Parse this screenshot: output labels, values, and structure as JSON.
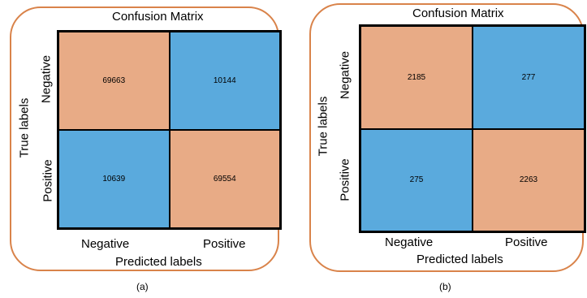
{
  "colors": {
    "high": "#e8ab86",
    "low": "#5aaadd",
    "frame": "#d9834a"
  },
  "panels": [
    {
      "title": "Confusion Matrix",
      "ylabel": "True labels",
      "xlabel": "Predicted labels",
      "row_labels": [
        "Negative",
        "Positive"
      ],
      "col_labels": [
        "Negative",
        "Positive"
      ],
      "cells": [
        [
          "69663",
          "10144"
        ],
        [
          "10639",
          "69554"
        ]
      ],
      "caption": "(a)"
    },
    {
      "title": "Confusion Matrix",
      "ylabel": "True labels",
      "xlabel": "Predicted labels",
      "row_labels": [
        "Negative",
        "Positive"
      ],
      "col_labels": [
        "Negative",
        "Positive"
      ],
      "cells": [
        [
          "2185",
          "277"
        ],
        [
          "275",
          "2263"
        ]
      ],
      "caption": "(b)"
    }
  ]
}
